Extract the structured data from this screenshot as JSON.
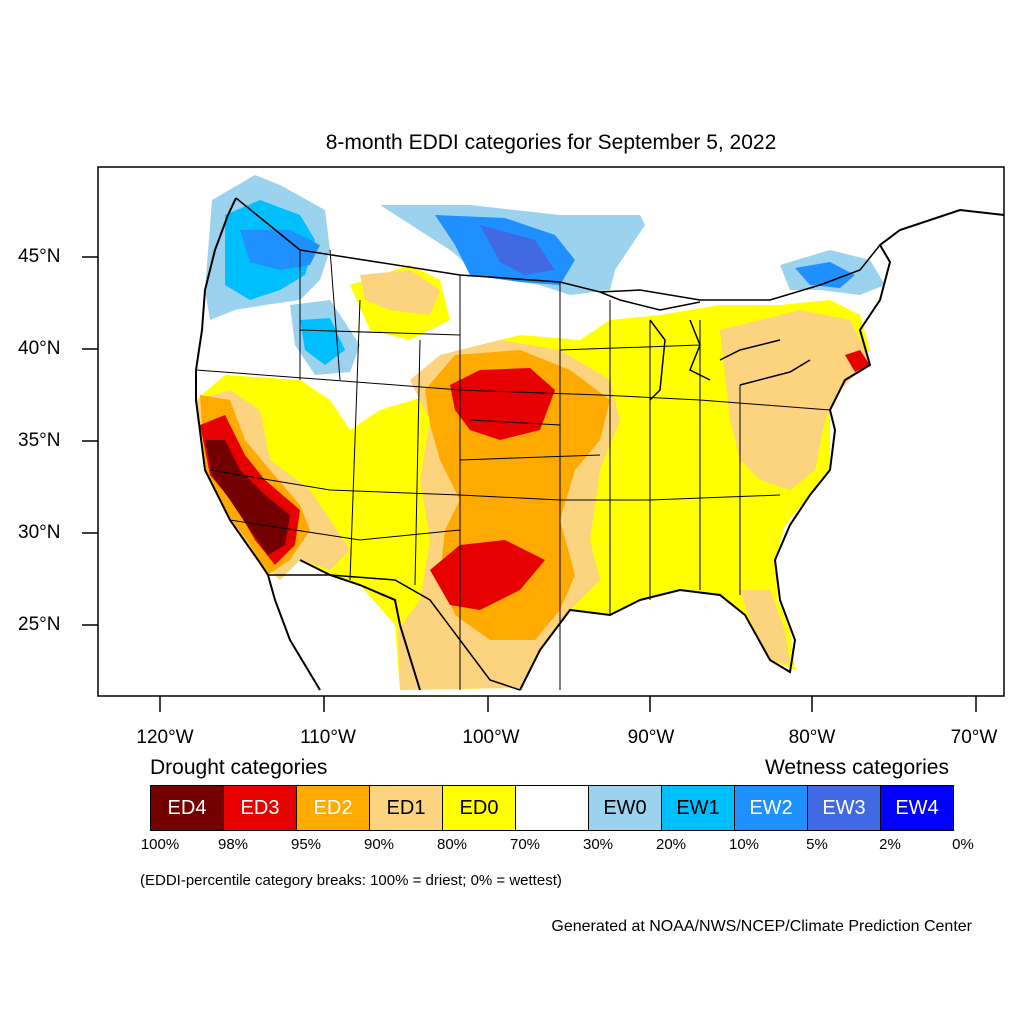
{
  "title": "8-month EDDI categories for September 5, 2022",
  "axes": {
    "lon_labels": [
      "120°W",
      "110°W",
      "100°W",
      "90°W",
      "80°W",
      "70°W"
    ],
    "lat_labels": [
      "45°N",
      "40°N",
      "35°N",
      "30°N",
      "25°N"
    ]
  },
  "legend": {
    "drought_heading": "Drought categories",
    "wetness_heading": "Wetness categories",
    "categories": [
      {
        "label": "ED4",
        "color": "#730000",
        "text_color": "#ffffff"
      },
      {
        "label": "ED3",
        "color": "#e60000",
        "text_color": "#ffffff"
      },
      {
        "label": "ED2",
        "color": "#ffaa00",
        "text_color": "#ffffff"
      },
      {
        "label": "ED1",
        "color": "#fcd37f",
        "text_color": "#000000"
      },
      {
        "label": "ED0",
        "color": "#ffff00",
        "text_color": "#000000"
      },
      {
        "label": "",
        "color": "#ffffff",
        "text_color": "#000000"
      },
      {
        "label": "EW0",
        "color": "#9bd3ef",
        "text_color": "#000000"
      },
      {
        "label": "EW1",
        "color": "#00bfff",
        "text_color": "#000000"
      },
      {
        "label": "EW2",
        "color": "#1e90ff",
        "text_color": "#ffffff"
      },
      {
        "label": "EW3",
        "color": "#4169e1",
        "text_color": "#ffffff"
      },
      {
        "label": "EW4",
        "color": "#0000ff",
        "text_color": "#ffffff"
      }
    ],
    "percent_breaks": [
      "100%",
      "98%",
      "95%",
      "90%",
      "80%",
      "70%",
      "30%",
      "20%",
      "10%",
      "5%",
      "2%",
      "0%"
    ]
  },
  "note": "(EDDI-percentile category breaks: 100% = driest; 0% = wettest)",
  "credit": "Generated at NOAA/NWS/NCEP/Climate Prediction Center"
}
